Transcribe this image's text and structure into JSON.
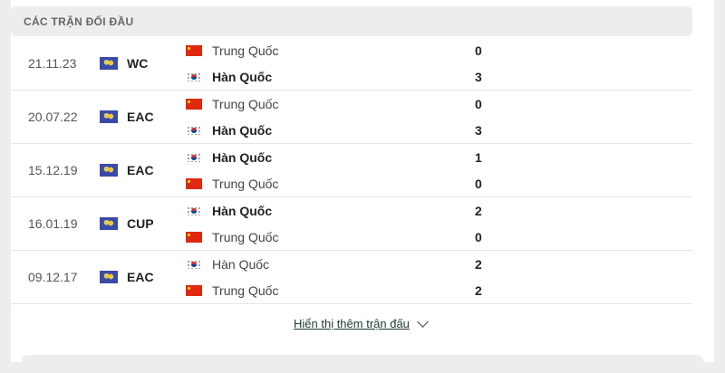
{
  "section_title": "CÁC TRẬN ĐỐI ĐẦU",
  "matches": [
    {
      "date": "21.11.23",
      "competition": "WC",
      "team1": {
        "name": "Trung Quốc",
        "flag": "china-flag",
        "score": "0",
        "winner": false
      },
      "team2": {
        "name": "Hàn Quốc",
        "flag": "korea-flag",
        "score": "3",
        "winner": true
      }
    },
    {
      "date": "20.07.22",
      "competition": "EAC",
      "team1": {
        "name": "Trung Quốc",
        "flag": "china-flag",
        "score": "0",
        "winner": false
      },
      "team2": {
        "name": "Hàn Quốc",
        "flag": "korea-flag",
        "score": "3",
        "winner": true
      }
    },
    {
      "date": "15.12.19",
      "competition": "EAC",
      "team1": {
        "name": "Hàn Quốc",
        "flag": "korea-flag",
        "score": "1",
        "winner": true
      },
      "team2": {
        "name": "Trung Quốc",
        "flag": "china-flag",
        "score": "0",
        "winner": false
      }
    },
    {
      "date": "16.01.19",
      "competition": "CUP",
      "team1": {
        "name": "Hàn Quốc",
        "flag": "korea-flag",
        "score": "2",
        "winner": true
      },
      "team2": {
        "name": "Trung Quốc",
        "flag": "china-flag",
        "score": "0",
        "winner": false
      }
    },
    {
      "date": "09.12.17",
      "competition": "EAC",
      "team1": {
        "name": "Hàn Quốc",
        "flag": "korea-flag",
        "score": "2",
        "winner": false
      },
      "team2": {
        "name": "Trung Quốc",
        "flag": "china-flag",
        "score": "2",
        "winner": false
      }
    }
  ],
  "show_more_label": "Hiển thị thêm trận đấu"
}
